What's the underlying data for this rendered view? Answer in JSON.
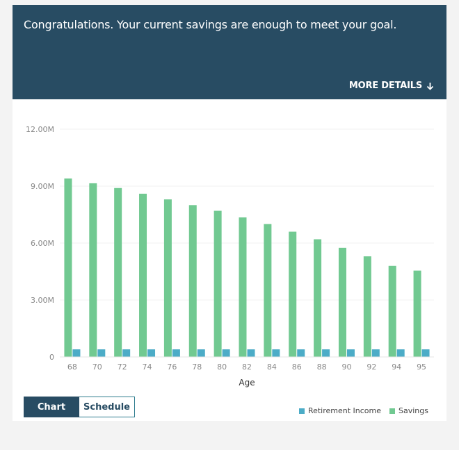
{
  "banner": {
    "message": "Congratulations. Your current savings are enough to meet your goal.",
    "more_details_label": "MORE DETAILS",
    "more_details_icon": "arrow-down-icon"
  },
  "tabs": [
    {
      "label": "Chart",
      "active": true
    },
    {
      "label": "Schedule",
      "active": false
    }
  ],
  "legend": [
    {
      "label": "Retirement Income",
      "color": "#4cacc7"
    },
    {
      "label": "Savings",
      "color": "#71c991"
    }
  ],
  "chart_data": {
    "type": "bar",
    "xlabel": "Age",
    "ylabel": "",
    "ylim": [
      0,
      12000000
    ],
    "y_ticks": [
      {
        "value": 0,
        "label": "0"
      },
      {
        "value": 3000000,
        "label": "3.00M"
      },
      {
        "value": 6000000,
        "label": "6.00M"
      },
      {
        "value": 9000000,
        "label": "9.00M"
      },
      {
        "value": 12000000,
        "label": "12.00M"
      }
    ],
    "categories": [
      "68",
      "70",
      "72",
      "74",
      "76",
      "78",
      "80",
      "82",
      "84",
      "86",
      "88",
      "90",
      "92",
      "94",
      "95"
    ],
    "series": [
      {
        "name": "Savings",
        "color": "#71c991",
        "values": [
          9400000,
          9150000,
          8900000,
          8600000,
          8300000,
          8000000,
          7700000,
          7350000,
          7000000,
          6600000,
          6200000,
          5750000,
          5300000,
          4800000,
          4550000
        ]
      },
      {
        "name": "Retirement Income",
        "color": "#4cacc7",
        "values": [
          400000,
          400000,
          400000,
          400000,
          400000,
          400000,
          400000,
          400000,
          400000,
          400000,
          400000,
          400000,
          400000,
          400000,
          400000
        ]
      }
    ],
    "grid": true,
    "legend_position": "bottom-right"
  }
}
